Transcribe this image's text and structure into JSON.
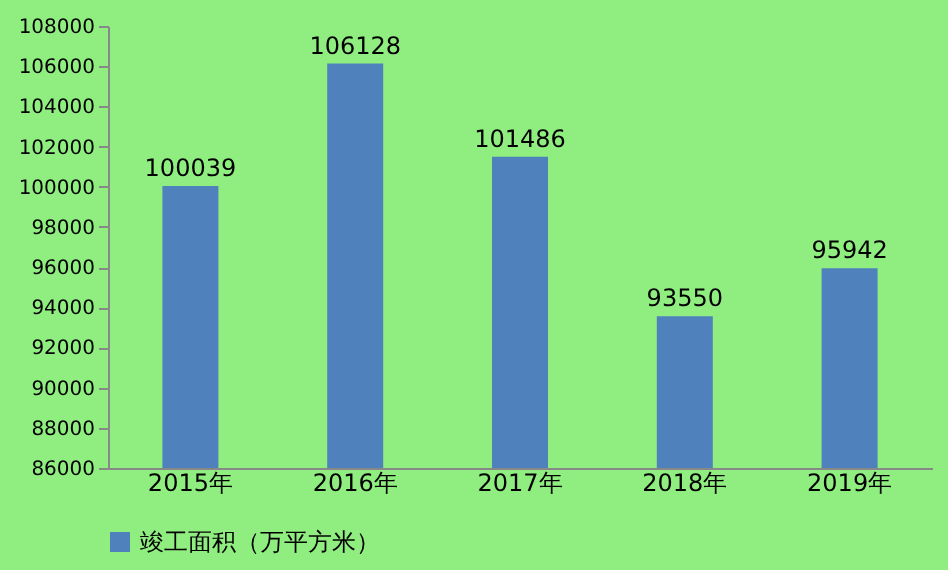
{
  "chart_data": {
    "type": "bar",
    "categories": [
      "2015年",
      "2016年",
      "2017年",
      "2018年",
      "2019年"
    ],
    "series": [
      {
        "name": "竣工面积（万平方米）",
        "color": "#4f81bd",
        "values": [
          100039,
          106128,
          101486,
          93550,
          95942
        ]
      }
    ],
    "ylim": [
      86000,
      108000
    ],
    "yticks": [
      86000,
      88000,
      90000,
      92000,
      94000,
      96000,
      98000,
      100000,
      102000,
      104000,
      106000,
      108000
    ],
    "data_labels": true,
    "grid": false,
    "legend": "bottom"
  }
}
